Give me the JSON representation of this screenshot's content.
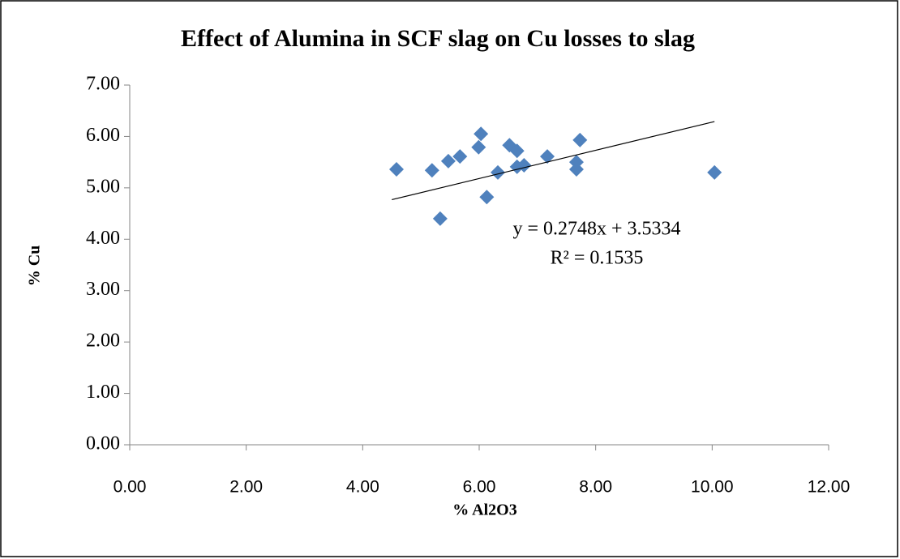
{
  "chart_data": {
    "type": "scatter",
    "title": "Effect of Alumina in SCF slag on Cu losses to slag",
    "x_label": "% Al2O3",
    "y_label": "% Cu",
    "x": [
      4.58,
      5.19,
      5.33,
      5.47,
      5.67,
      5.99,
      6.03,
      6.13,
      6.32,
      6.52,
      6.65,
      6.65,
      6.77,
      7.17,
      7.67,
      7.67,
      7.73,
      10.04
    ],
    "series": [
      {
        "name": "% Cu",
        "color": "#4f81bd",
        "values": [
          5.36,
          5.34,
          4.4,
          5.52,
          5.61,
          5.79,
          6.05,
          4.82,
          5.3,
          5.83,
          5.72,
          5.41,
          5.44,
          5.61,
          5.5,
          5.36,
          5.93,
          5.3
        ]
      }
    ],
    "trendline": {
      "x": [
        4.5,
        10.04
      ],
      "y": [
        4.77,
        6.29
      ],
      "color": "#000000"
    },
    "annotations": [
      "y = 0.2748x + 3.5334",
      "R² = 0.1535"
    ],
    "xlim": [
      0,
      12
    ],
    "xticks": [
      {
        "value": 0,
        "label": "0.00"
      },
      {
        "value": 2,
        "label": "2.00"
      },
      {
        "value": 4,
        "label": "4.00"
      },
      {
        "value": 6,
        "label": "6.00"
      },
      {
        "value": 8,
        "label": "8.00"
      },
      {
        "value": 10,
        "label": "10.00"
      },
      {
        "value": 12,
        "label": "12.00"
      }
    ],
    "ylim": [
      0,
      7
    ],
    "yticks": [
      {
        "value": 0,
        "label": "0.00"
      },
      {
        "value": 1,
        "label": "1.00"
      },
      {
        "value": 2,
        "label": "2.00"
      },
      {
        "value": 3,
        "label": "3.00"
      },
      {
        "value": 4,
        "label": "4.00"
      },
      {
        "value": 5,
        "label": "5.00"
      },
      {
        "value": 6,
        "label": "6.00"
      },
      {
        "value": 7,
        "label": "7.00"
      }
    ],
    "grid": false
  }
}
